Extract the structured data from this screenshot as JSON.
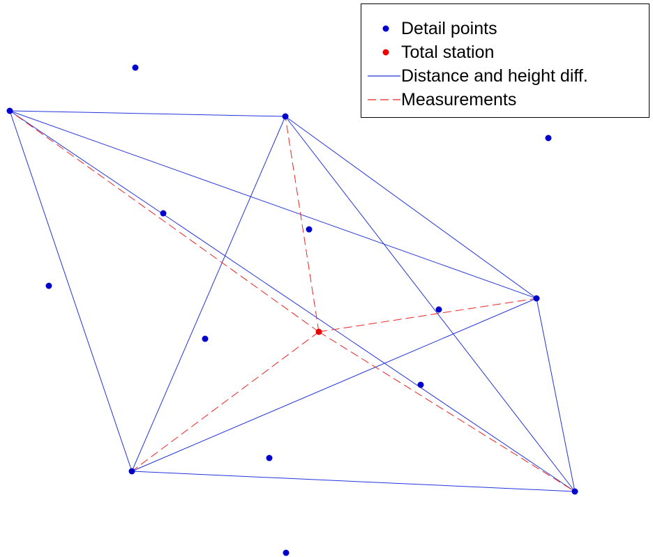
{
  "colors": {
    "detail_point": "#0000cc",
    "total_station": "#ee0000",
    "distance_line": "#2233dd",
    "measurement_line": "#ee2222"
  },
  "legend": {
    "detail_points": "Detail points",
    "total_station": "Total station",
    "distance_and_height": "Distance and height diff.",
    "measurements": "Measurements"
  }
}
